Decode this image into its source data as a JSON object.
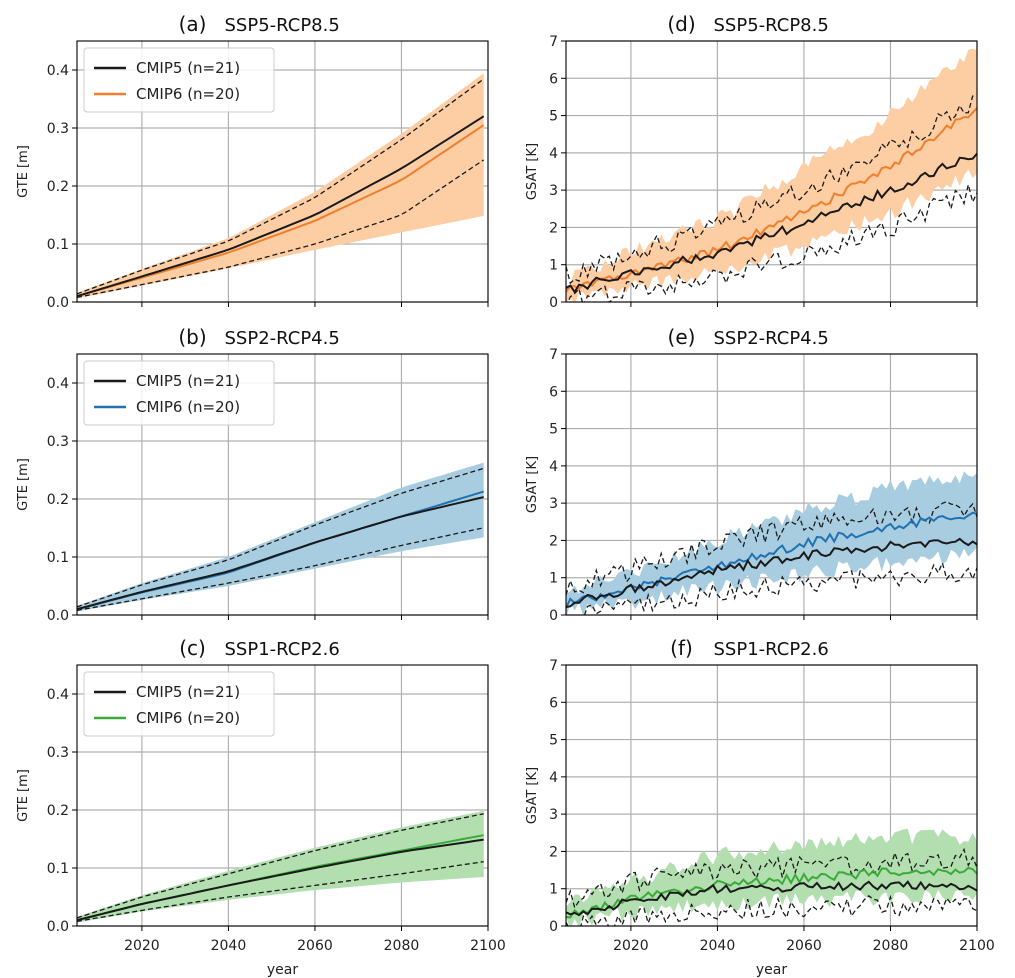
{
  "colors": {
    "cmip5": "#1a1a1a",
    "orange": "#ef7f2d",
    "orange_fill": "#fdcda4",
    "blue": "#2271b1",
    "blue_fill": "#a9cde0",
    "green": "#3aaa3a",
    "green_fill": "#b3dfb0",
    "grid": "#b0b0b0"
  },
  "chart_data": [
    {
      "id": "a",
      "type": "line",
      "title_letter": "(a)",
      "title_scenario": "SSP5-RCP8.5",
      "xlabel": "",
      "ylabel": "GTE [m]",
      "xlim": [
        2005,
        2100
      ],
      "ylim": [
        0,
        0.45
      ],
      "xticks": [
        2020,
        2040,
        2060,
        2080,
        2100
      ],
      "yticks": [
        0.0,
        0.1,
        0.2,
        0.3,
        0.4
      ],
      "ytick_labels": [
        "0.0",
        "0.1",
        "0.2",
        "0.3",
        "0.4"
      ],
      "show_xtick_labels": false,
      "grid": true,
      "legend": "top-left",
      "color": "orange",
      "x": [
        2005,
        2020,
        2040,
        2060,
        2080,
        2100
      ],
      "series": [
        {
          "name": "CMIP5 (n=21)",
          "values": [
            0.01,
            0.044,
            0.09,
            0.15,
            0.23,
            0.325
          ]
        },
        {
          "name": "CMIP6 (n=20)",
          "values": [
            0.01,
            0.042,
            0.085,
            0.14,
            0.21,
            0.31
          ]
        }
      ],
      "cmip5_range": {
        "low": [
          0.008,
          0.03,
          0.06,
          0.1,
          0.15,
          0.25
        ],
        "high": [
          0.014,
          0.055,
          0.105,
          0.18,
          0.28,
          0.39
        ]
      },
      "cmip6_range": {
        "low": [
          0.006,
          0.028,
          0.058,
          0.09,
          0.12,
          0.15
        ],
        "high": [
          0.016,
          0.057,
          0.11,
          0.19,
          0.29,
          0.4
        ]
      }
    },
    {
      "id": "b",
      "type": "line",
      "title_letter": "(b)",
      "title_scenario": "SSP2-RCP4.5",
      "xlabel": "",
      "ylabel": "GTE [m]",
      "xlim": [
        2005,
        2100
      ],
      "ylim": [
        0,
        0.45
      ],
      "xticks": [
        2020,
        2040,
        2060,
        2080,
        2100
      ],
      "yticks": [
        0.0,
        0.1,
        0.2,
        0.3,
        0.4
      ],
      "ytick_labels": [
        "0.0",
        "0.1",
        "0.2",
        "0.3",
        "0.4"
      ],
      "show_xtick_labels": false,
      "grid": true,
      "legend": "top-left",
      "color": "blue",
      "x": [
        2005,
        2020,
        2040,
        2060,
        2080,
        2100
      ],
      "series": [
        {
          "name": "CMIP5 (n=21)",
          "values": [
            0.01,
            0.04,
            0.075,
            0.125,
            0.17,
            0.205
          ]
        },
        {
          "name": "CMIP6 (n=20)",
          "values": [
            0.01,
            0.039,
            0.073,
            0.125,
            0.17,
            0.215
          ]
        }
      ],
      "cmip5_range": {
        "low": [
          0.008,
          0.028,
          0.055,
          0.085,
          0.12,
          0.152
        ],
        "high": [
          0.014,
          0.052,
          0.095,
          0.155,
          0.21,
          0.255
        ]
      },
      "cmip6_range": {
        "low": [
          0.006,
          0.026,
          0.05,
          0.08,
          0.11,
          0.135
        ],
        "high": [
          0.016,
          0.055,
          0.1,
          0.16,
          0.22,
          0.265
        ]
      }
    },
    {
      "id": "c",
      "type": "line",
      "title_letter": "(c)",
      "title_scenario": "SSP1-RCP2.6",
      "xlabel": "year",
      "ylabel": "GTE [m]",
      "xlim": [
        2005,
        2100
      ],
      "ylim": [
        0,
        0.45
      ],
      "xticks": [
        2020,
        2040,
        2060,
        2080,
        2100
      ],
      "yticks": [
        0.0,
        0.1,
        0.2,
        0.3,
        0.4
      ],
      "ytick_labels": [
        "0.0",
        "0.1",
        "0.2",
        "0.3",
        "0.4"
      ],
      "show_xtick_labels": true,
      "grid": true,
      "legend": "top-left",
      "color": "green",
      "x": [
        2005,
        2020,
        2040,
        2060,
        2080,
        2100
      ],
      "series": [
        {
          "name": "CMIP5 (n=21)",
          "values": [
            0.01,
            0.038,
            0.07,
            0.1,
            0.128,
            0.15
          ]
        },
        {
          "name": "CMIP6 (n=20)",
          "values": [
            0.01,
            0.038,
            0.07,
            0.102,
            0.13,
            0.158
          ]
        }
      ],
      "cmip5_range": {
        "low": [
          0.008,
          0.027,
          0.05,
          0.07,
          0.09,
          0.112
        ],
        "high": [
          0.014,
          0.05,
          0.09,
          0.13,
          0.165,
          0.195
        ]
      },
      "cmip6_range": {
        "low": [
          0.006,
          0.025,
          0.045,
          0.062,
          0.075,
          0.085
        ],
        "high": [
          0.016,
          0.053,
          0.095,
          0.135,
          0.17,
          0.2
        ]
      }
    },
    {
      "id": "d",
      "type": "line",
      "title_letter": "(d)",
      "title_scenario": "SSP5-RCP8.5",
      "xlabel": "",
      "ylabel": "GSAT [K]",
      "xlim": [
        2005,
        2100
      ],
      "ylim": [
        0,
        7
      ],
      "xticks": [
        2020,
        2040,
        2060,
        2080,
        2100
      ],
      "yticks": [
        0,
        1,
        2,
        3,
        4,
        5,
        6,
        7
      ],
      "ytick_labels": [
        "0",
        "1",
        "2",
        "3",
        "4",
        "5",
        "6",
        "7"
      ],
      "show_xtick_labels": false,
      "grid": true,
      "legend": "none",
      "color": "orange",
      "x": [
        2005,
        2020,
        2040,
        2060,
        2080,
        2100
      ],
      "series": [
        {
          "name": "CMIP5",
          "values": [
            0.3,
            0.8,
            1.3,
            2.1,
            3.0,
            4.0
          ]
        },
        {
          "name": "CMIP6",
          "values": [
            0.3,
            0.8,
            1.4,
            2.4,
            3.6,
            5.2
          ]
        }
      ],
      "cmip5_range": {
        "low": [
          0.0,
          0.35,
          0.7,
          1.3,
          2.0,
          3.0
        ],
        "high": [
          0.7,
          1.3,
          2.0,
          3.0,
          4.2,
          5.3
        ]
      },
      "cmip6_range": {
        "low": [
          0.1,
          0.4,
          0.85,
          1.5,
          2.4,
          3.5
        ],
        "high": [
          0.6,
          1.3,
          2.2,
          3.6,
          5.0,
          6.9
        ]
      }
    },
    {
      "id": "e",
      "type": "line",
      "title_letter": "(e)",
      "title_scenario": "SSP2-RCP4.5",
      "xlabel": "",
      "ylabel": "GSAT [K]",
      "xlim": [
        2005,
        2100
      ],
      "ylim": [
        0,
        7
      ],
      "xticks": [
        2020,
        2040,
        2060,
        2080,
        2100
      ],
      "yticks": [
        0,
        1,
        2,
        3,
        4,
        5,
        6,
        7
      ],
      "ytick_labels": [
        "0",
        "1",
        "2",
        "3",
        "4",
        "5",
        "6",
        "7"
      ],
      "show_xtick_labels": false,
      "grid": true,
      "legend": "none",
      "color": "blue",
      "x": [
        2005,
        2020,
        2040,
        2060,
        2080,
        2100
      ],
      "series": [
        {
          "name": "CMIP5",
          "values": [
            0.3,
            0.7,
            1.2,
            1.6,
            1.85,
            2.0
          ]
        },
        {
          "name": "CMIP6",
          "values": [
            0.3,
            0.7,
            1.3,
            1.9,
            2.4,
            2.7
          ]
        }
      ],
      "cmip5_range": {
        "low": [
          0.0,
          0.3,
          0.6,
          0.85,
          1.0,
          1.2
        ],
        "high": [
          0.7,
          1.2,
          1.9,
          2.4,
          2.7,
          2.8
        ]
      },
      "cmip6_range": {
        "low": [
          0.1,
          0.35,
          0.75,
          1.1,
          1.4,
          1.6
        ],
        "high": [
          0.55,
          1.15,
          2.0,
          2.8,
          3.4,
          3.7
        ]
      }
    },
    {
      "id": "f",
      "type": "line",
      "title_letter": "(f)",
      "title_scenario": "SSP1-RCP2.6",
      "xlabel": "year",
      "ylabel": "GSAT [K]",
      "xlim": [
        2005,
        2100
      ],
      "ylim": [
        0,
        7
      ],
      "xticks": [
        2020,
        2040,
        2060,
        2080,
        2100
      ],
      "yticks": [
        0,
        1,
        2,
        3,
        4,
        5,
        6,
        7
      ],
      "ytick_labels": [
        "0",
        "1",
        "2",
        "3",
        "4",
        "5",
        "6",
        "7"
      ],
      "show_xtick_labels": true,
      "grid": true,
      "legend": "none",
      "color": "green",
      "x": [
        2005,
        2020,
        2040,
        2060,
        2080,
        2100
      ],
      "series": [
        {
          "name": "CMIP5",
          "values": [
            0.3,
            0.65,
            1.0,
            1.05,
            1.1,
            1.0
          ]
        },
        {
          "name": "CMIP6",
          "values": [
            0.3,
            0.7,
            1.1,
            1.3,
            1.45,
            1.5
          ]
        }
      ],
      "cmip5_range": {
        "low": [
          0.0,
          0.25,
          0.45,
          0.5,
          0.55,
          0.55
        ],
        "high": [
          0.7,
          1.2,
          1.5,
          1.6,
          1.7,
          1.8
        ]
      },
      "cmip6_range": {
        "low": [
          0.1,
          0.35,
          0.6,
          0.7,
          0.75,
          0.8
        ],
        "high": [
          0.6,
          1.2,
          1.9,
          2.2,
          2.4,
          2.4
        ]
      }
    }
  ]
}
